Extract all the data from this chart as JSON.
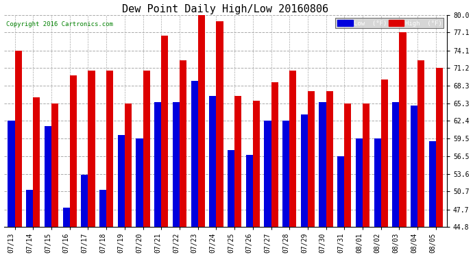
{
  "title": "Dew Point Daily High/Low 20160806",
  "copyright": "Copyright 2016 Cartronics.com",
  "dates": [
    "07/13",
    "07/14",
    "07/15",
    "07/16",
    "07/17",
    "07/18",
    "07/19",
    "07/20",
    "07/21",
    "07/22",
    "07/23",
    "07/24",
    "07/25",
    "07/26",
    "07/27",
    "07/28",
    "07/29",
    "07/30",
    "07/31",
    "08/01",
    "08/02",
    "08/03",
    "08/04",
    "08/05"
  ],
  "low": [
    62.4,
    51.0,
    61.5,
    48.0,
    53.5,
    51.0,
    60.0,
    59.5,
    65.5,
    65.5,
    69.0,
    66.5,
    57.5,
    56.7,
    62.4,
    62.4,
    63.5,
    65.5,
    56.5,
    59.5,
    59.5,
    65.5,
    65.0,
    59.0
  ],
  "high": [
    74.1,
    66.3,
    65.3,
    70.0,
    70.7,
    70.7,
    65.3,
    70.7,
    76.5,
    72.5,
    80.0,
    79.0,
    66.5,
    65.8,
    68.8,
    70.8,
    67.3,
    67.3,
    65.3,
    65.3,
    69.3,
    77.1,
    72.5,
    71.2
  ],
  "ylim": [
    44.8,
    80.0
  ],
  "yticks": [
    44.8,
    47.7,
    50.7,
    53.6,
    56.5,
    59.5,
    62.4,
    65.3,
    68.3,
    71.2,
    74.1,
    77.1,
    80.0
  ],
  "bar_width": 0.38,
  "low_color": "#0000dd",
  "high_color": "#dd0000",
  "bg_color": "#ffffff",
  "plot_bg_color": "#ffffff",
  "grid_color": "#aaaaaa",
  "title_fontsize": 11,
  "tick_fontsize": 7,
  "copyright_fontsize": 6.5
}
